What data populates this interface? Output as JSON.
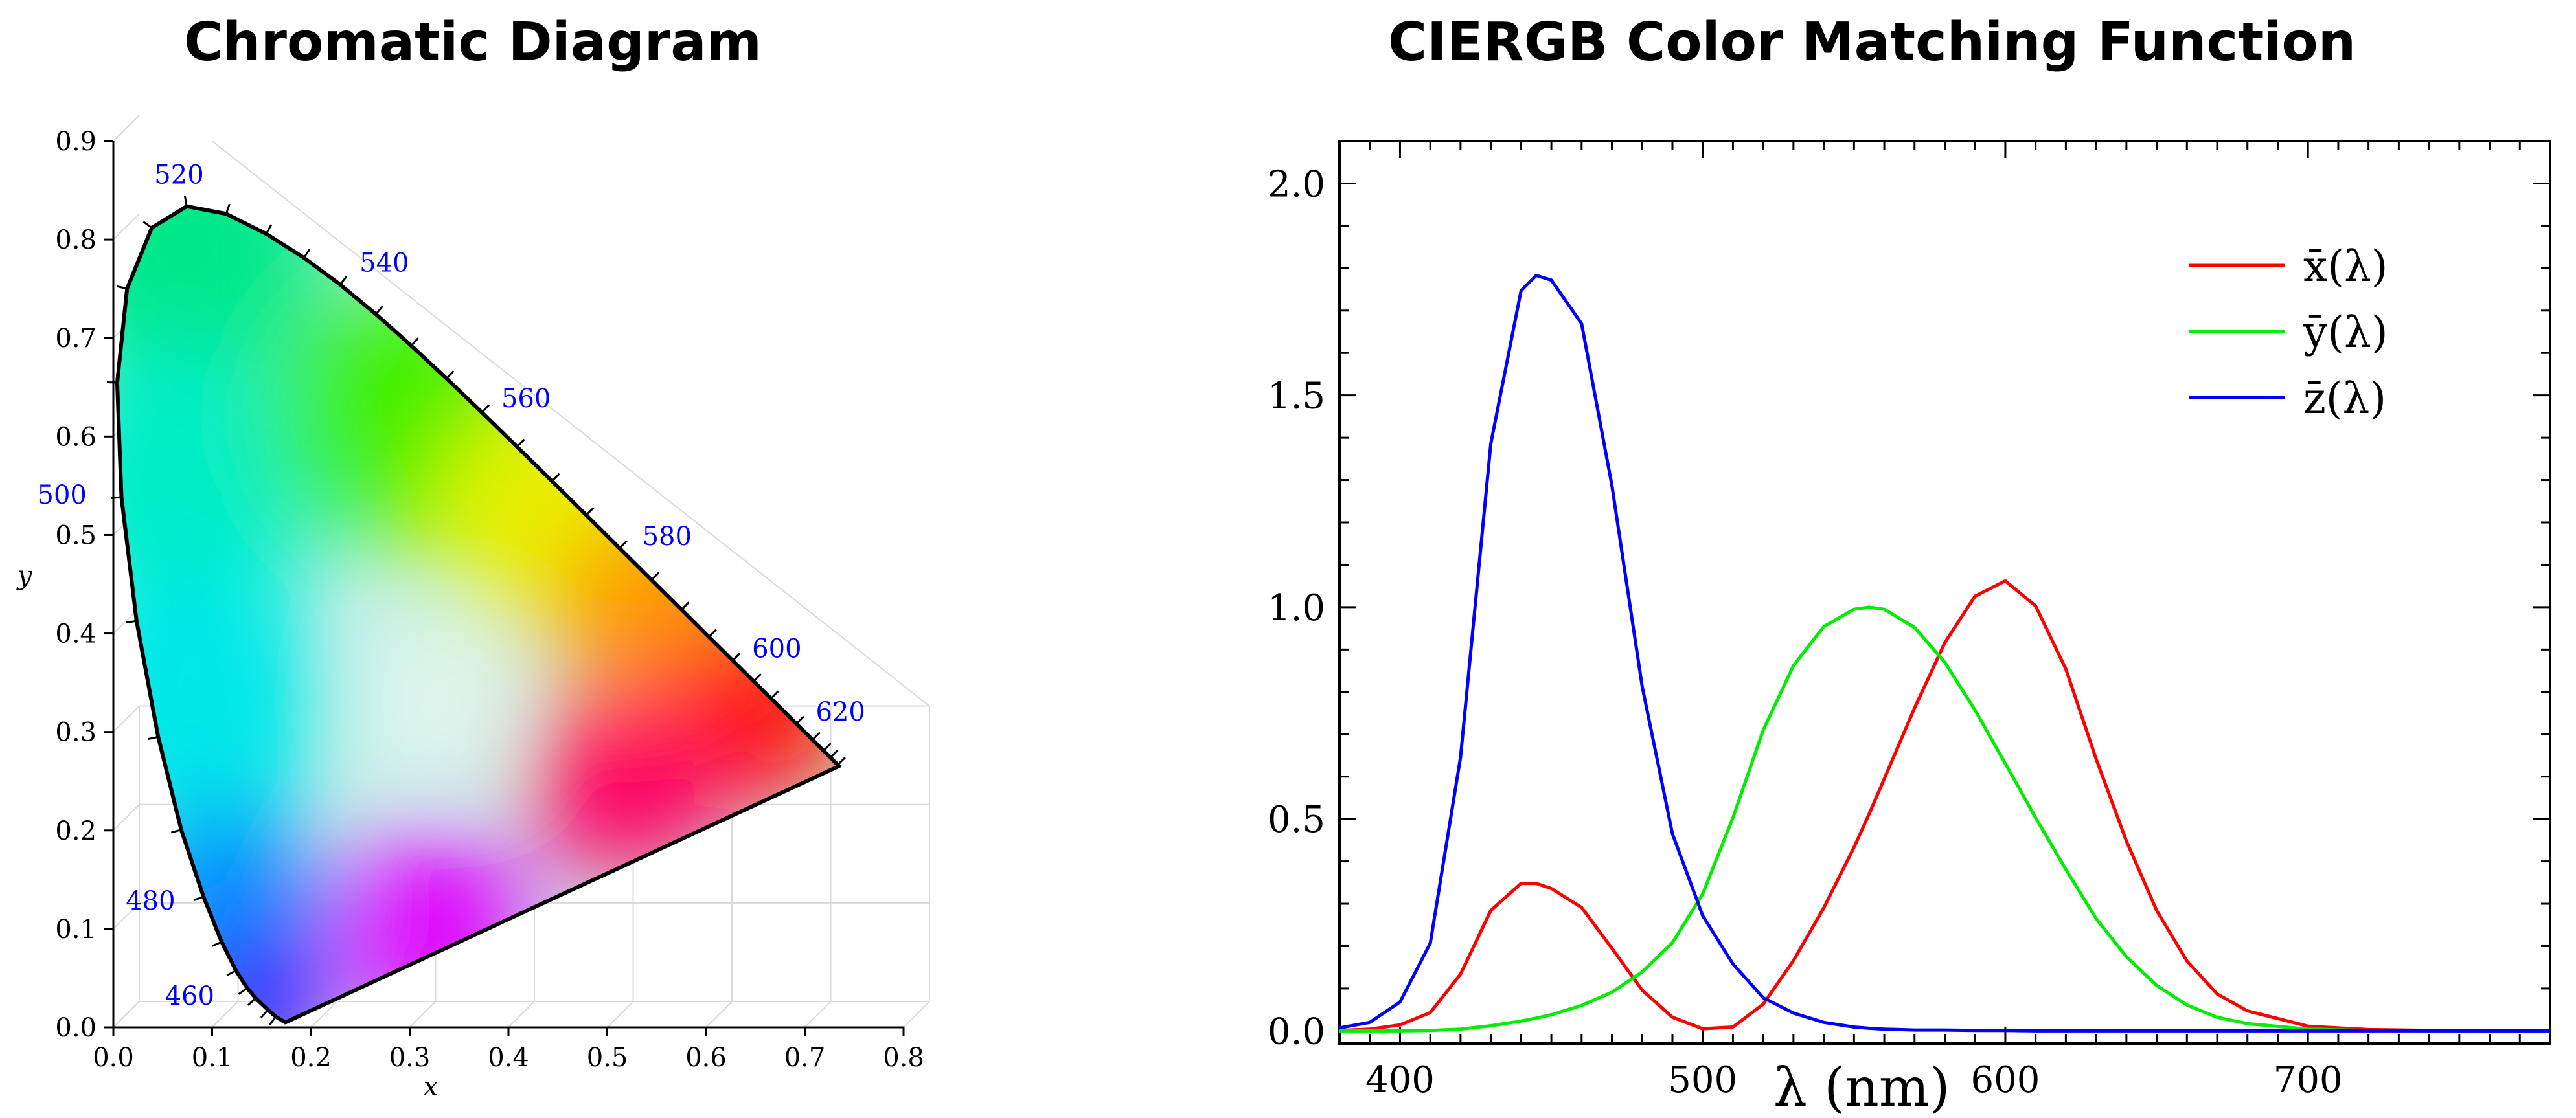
{
  "colors": {
    "ink": "#000000",
    "wavelength_label": "#0000ff",
    "grid": "#d9d9d9",
    "red": "#ff0000",
    "green": "#00ee00",
    "blue": "#0000ff"
  },
  "chart_data": [
    {
      "type": "scatter",
      "title": "Chromatic Diagram",
      "xlabel": "x",
      "ylabel": "y",
      "xlim": [
        0,
        0.8
      ],
      "ylim": [
        0,
        0.9
      ],
      "xticks": [
        "0.0",
        "0.1",
        "0.2",
        "0.3",
        "0.4",
        "0.5",
        "0.6",
        "0.7",
        "0.8"
      ],
      "yticks": [
        "0.0",
        "0.1",
        "0.2",
        "0.3",
        "0.4",
        "0.5",
        "0.6",
        "0.7",
        "0.8",
        "0.9"
      ],
      "grid": true,
      "locus": {
        "wavelengths": [
          380,
          440,
          450,
          460,
          465,
          470,
          475,
          480,
          485,
          490,
          495,
          500,
          505,
          510,
          515,
          520,
          525,
          530,
          535,
          540,
          545,
          550,
          555,
          560,
          565,
          570,
          575,
          580,
          585,
          590,
          595,
          600,
          605,
          610,
          620,
          630,
          640,
          650,
          680,
          700
        ],
        "x": [
          0.1741,
          0.1644,
          0.1566,
          0.144,
          0.1355,
          0.1241,
          0.1096,
          0.0913,
          0.0687,
          0.0454,
          0.0235,
          0.0082,
          0.0039,
          0.0139,
          0.0389,
          0.0743,
          0.1142,
          0.1547,
          0.1929,
          0.2296,
          0.2658,
          0.3016,
          0.3373,
          0.3731,
          0.4087,
          0.4441,
          0.4788,
          0.5125,
          0.5448,
          0.5752,
          0.6029,
          0.627,
          0.6482,
          0.6658,
          0.6915,
          0.7079,
          0.719,
          0.726,
          0.7334,
          0.7347
        ],
        "y": [
          0.005,
          0.0109,
          0.0177,
          0.0297,
          0.0399,
          0.0578,
          0.0868,
          0.1327,
          0.2007,
          0.295,
          0.4127,
          0.5384,
          0.6548,
          0.7502,
          0.812,
          0.8338,
          0.8262,
          0.8059,
          0.7816,
          0.7543,
          0.7243,
          0.6923,
          0.6589,
          0.6245,
          0.5896,
          0.5547,
          0.5202,
          0.4866,
          0.4544,
          0.4242,
          0.3965,
          0.3725,
          0.3514,
          0.334,
          0.3083,
          0.292,
          0.2809,
          0.274,
          0.2666,
          0.2653
        ]
      },
      "wavelength_labels": [
        {
          "text": "460",
          "wl": 460
        },
        {
          "text": "480",
          "wl": 480
        },
        {
          "text": "500",
          "wl": 500
        },
        {
          "text": "520",
          "wl": 520
        },
        {
          "text": "540",
          "wl": 540
        },
        {
          "text": "560",
          "wl": 560
        },
        {
          "text": "580",
          "wl": 580
        },
        {
          "text": "600",
          "wl": 600
        },
        {
          "text": "620",
          "wl": 620
        }
      ]
    },
    {
      "type": "line",
      "title": "CIERGB Color Matching Function",
      "xlabel": "λ (nm)",
      "ylabel": "",
      "xlim": [
        380,
        780
      ],
      "ylim": [
        -0.03,
        2.1
      ],
      "xticks": [
        "400",
        "500",
        "600",
        "700"
      ],
      "yticks": [
        "0.0",
        "0.5",
        "1.0",
        "1.5",
        "2.0"
      ],
      "legend_position": "top-right",
      "x": [
        380,
        390,
        400,
        410,
        420,
        430,
        440,
        445,
        450,
        460,
        470,
        480,
        490,
        500,
        510,
        520,
        530,
        540,
        550,
        555,
        560,
        570,
        580,
        590,
        600,
        610,
        620,
        630,
        640,
        650,
        660,
        670,
        680,
        700,
        720,
        750,
        780
      ],
      "series": [
        {
          "name": "x̄(λ)",
          "color": "#ff0000",
          "values": [
            0.001,
            0.004,
            0.014,
            0.043,
            0.134,
            0.284,
            0.348,
            0.348,
            0.336,
            0.291,
            0.195,
            0.096,
            0.032,
            0.005,
            0.009,
            0.063,
            0.166,
            0.29,
            0.433,
            0.512,
            0.595,
            0.762,
            0.916,
            1.026,
            1.062,
            1.003,
            0.854,
            0.642,
            0.448,
            0.284,
            0.165,
            0.087,
            0.047,
            0.011,
            0.003,
            0.0003,
            0.0
          ]
        },
        {
          "name": "ȳ(λ)",
          "color": "#00ee00",
          "values": [
            0.0,
            0.0,
            0.0,
            0.001,
            0.004,
            0.012,
            0.023,
            0.03,
            0.038,
            0.06,
            0.091,
            0.139,
            0.208,
            0.323,
            0.503,
            0.71,
            0.862,
            0.954,
            0.995,
            1.0,
            0.995,
            0.952,
            0.87,
            0.757,
            0.631,
            0.503,
            0.381,
            0.265,
            0.175,
            0.107,
            0.061,
            0.032,
            0.017,
            0.004,
            0.001,
            0.0001,
            0.0
          ]
        },
        {
          "name": "z̄(λ)",
          "color": "#0000ff",
          "values": [
            0.007,
            0.02,
            0.068,
            0.207,
            0.646,
            1.386,
            1.747,
            1.783,
            1.772,
            1.669,
            1.288,
            0.813,
            0.465,
            0.272,
            0.158,
            0.078,
            0.042,
            0.02,
            0.009,
            0.006,
            0.004,
            0.002,
            0.002,
            0.001,
            0.001,
            0.0,
            0.0,
            0.0,
            0.0,
            0.0,
            0.0,
            0.0,
            0.0,
            0.0,
            0.0,
            0.0,
            0.0
          ]
        }
      ]
    }
  ]
}
